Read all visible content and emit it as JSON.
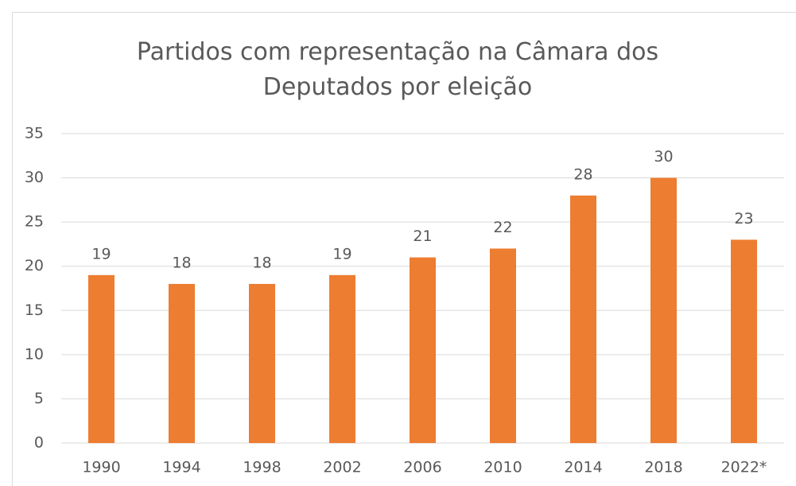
{
  "chart_data": {
    "type": "bar",
    "title": "Partidos com representação na Câmara dos Deputados por eleição",
    "categories": [
      "1990",
      "1994",
      "1998",
      "2002",
      "2006",
      "2010",
      "2014",
      "2018",
      "2022*"
    ],
    "values": [
      19,
      18,
      18,
      19,
      21,
      22,
      28,
      30,
      23
    ],
    "color": "#ed7d31",
    "ylim": [
      0,
      35
    ],
    "yticks": [
      0,
      5,
      10,
      15,
      20,
      25,
      30,
      35
    ],
    "grid": true,
    "data_labels": true
  }
}
